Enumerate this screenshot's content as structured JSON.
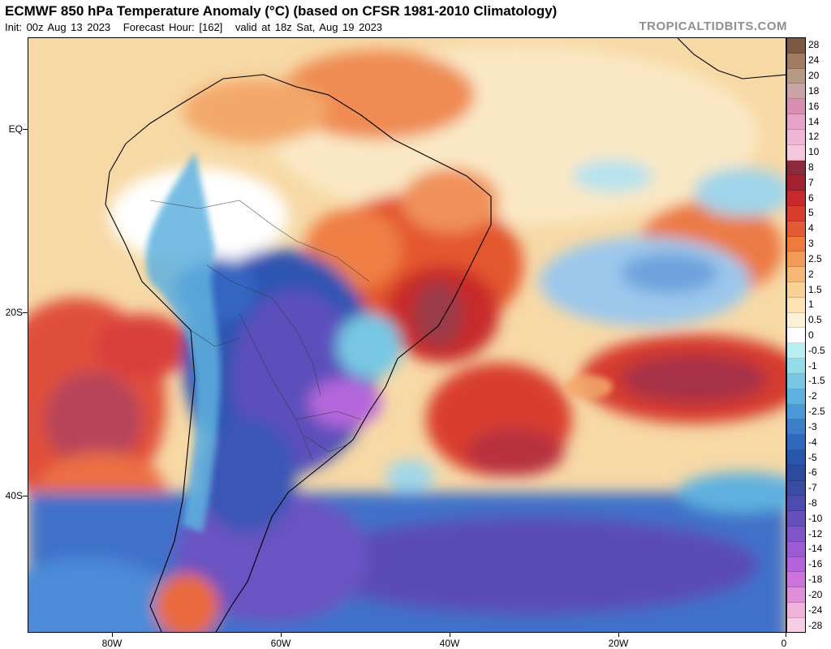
{
  "header": {
    "title": "ECMWF 850 hPa Temperature Anomaly (°C) (based on CFSR 1981-2010 Climatology)",
    "init": "Init: 00z Aug 13 2023",
    "forecast_hour": "Forecast Hour: [162]",
    "valid": "valid at 18z Sat, Aug 19 2023",
    "brand": "TROPICALTIDBITS.COM"
  },
  "map_axes": {
    "lat_labels": [
      "EQ",
      "20S",
      "40S"
    ],
    "lon_labels": [
      "80W",
      "60W",
      "40W",
      "20W",
      "0"
    ]
  },
  "colorbar": {
    "levels": [
      "28",
      "24",
      "20",
      "18",
      "16",
      "14",
      "12",
      "10",
      "8",
      "7",
      "6",
      "5",
      "4",
      "3",
      "2.5",
      "2",
      "1.5",
      "1",
      "0.5",
      "0",
      "-0.5",
      "-1",
      "-1.5",
      "-2",
      "-2.5",
      "-3",
      "-4",
      "-5",
      "-6",
      "-7",
      "-8",
      "-10",
      "-12",
      "-14",
      "-16",
      "-18",
      "-20",
      "-24",
      "-28"
    ],
    "colors": [
      "#7a5a45",
      "#a17b62",
      "#b89986",
      "#c9a3a8",
      "#d88fb0",
      "#e7a2c9",
      "#f0b7d6",
      "#f4c7dd",
      "#8a2a3a",
      "#a1222e",
      "#c72a2d",
      "#d93d2e",
      "#e35b35",
      "#ee7a3e",
      "#f39a57",
      "#f6b876",
      "#f9d194",
      "#fbe3b2",
      "#fdf2d8",
      "#ffffff",
      "#b8eef0",
      "#95dbe8",
      "#77c7e4",
      "#5fb1df",
      "#4a98d6",
      "#3b7fcb",
      "#2f68bd",
      "#2a55ad",
      "#2b4b9f",
      "#3a4ba6",
      "#4d4bb0",
      "#6650bd",
      "#7f55c8",
      "#9a5bd3",
      "#b563da",
      "#cd73dc",
      "#e08fd9",
      "#f0b3dc",
      "#f6cfe5"
    ]
  }
}
